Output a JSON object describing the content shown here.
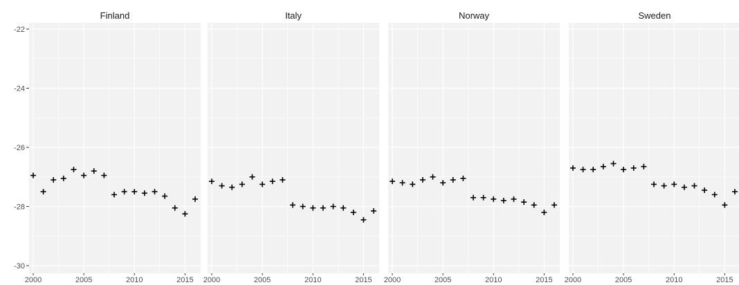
{
  "chart_data": {
    "type": "scatter",
    "title": "",
    "xlabel": "",
    "ylabel": "",
    "xlim": [
      2000,
      2016
    ],
    "ylim": [
      -30,
      -22
    ],
    "x_ticks": [
      "2000",
      "2005",
      "2010",
      "2015"
    ],
    "y_ticks": [
      "-22",
      "-24",
      "-26",
      "-28",
      "-30"
    ],
    "marker": "plus",
    "panel_background": "#f2f2f2",
    "grid_color": "#ffffff",
    "point_color": "#000000",
    "facets": [
      {
        "name": "Finland",
        "x": [
          2000,
          2001,
          2002,
          2003,
          2004,
          2005,
          2006,
          2007,
          2008,
          2009,
          2010,
          2011,
          2012,
          2013,
          2014,
          2015,
          2016
        ],
        "y": [
          -26.95,
          -27.5,
          -27.1,
          -27.05,
          -26.75,
          -26.95,
          -26.8,
          -26.95,
          -27.6,
          -27.5,
          -27.5,
          -27.55,
          -27.5,
          -27.65,
          -28.05,
          -28.25,
          -27.75
        ]
      },
      {
        "name": "Italy",
        "x": [
          2000,
          2001,
          2002,
          2003,
          2004,
          2005,
          2006,
          2007,
          2008,
          2009,
          2010,
          2011,
          2012,
          2013,
          2014,
          2015,
          2016
        ],
        "y": [
          -27.15,
          -27.3,
          -27.35,
          -27.25,
          -27.0,
          -27.25,
          -27.15,
          -27.1,
          -27.95,
          -28.0,
          -28.05,
          -28.05,
          -28.0,
          -28.05,
          -28.2,
          -28.45,
          -28.15
        ]
      },
      {
        "name": "Norway",
        "x": [
          2000,
          2001,
          2002,
          2003,
          2004,
          2005,
          2006,
          2007,
          2008,
          2009,
          2010,
          2011,
          2012,
          2013,
          2014,
          2015,
          2016
        ],
        "y": [
          -27.15,
          -27.2,
          -27.25,
          -27.1,
          -27.0,
          -27.2,
          -27.1,
          -27.05,
          -27.7,
          -27.7,
          -27.75,
          -27.8,
          -27.75,
          -27.85,
          -27.95,
          -28.2,
          -27.95
        ]
      },
      {
        "name": "Sweden",
        "x": [
          2000,
          2001,
          2002,
          2003,
          2004,
          2005,
          2006,
          2007,
          2008,
          2009,
          2010,
          2011,
          2012,
          2013,
          2014,
          2015,
          2016
        ],
        "y": [
          -26.7,
          -26.75,
          -26.75,
          -26.65,
          -26.55,
          -26.75,
          -26.7,
          -26.65,
          -27.25,
          -27.3,
          -27.25,
          -27.35,
          -27.3,
          -27.45,
          -27.6,
          -27.95,
          -27.5
        ]
      }
    ]
  }
}
